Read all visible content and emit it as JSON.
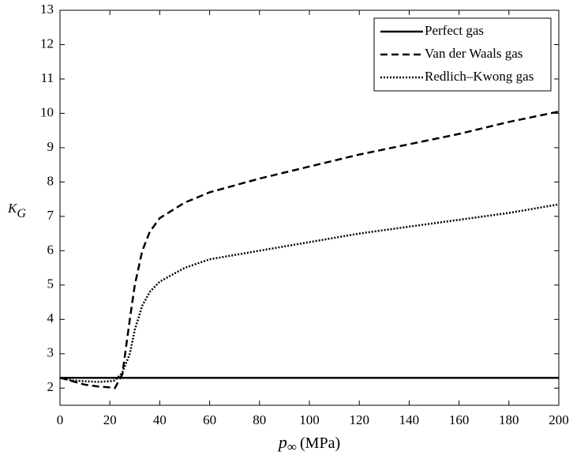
{
  "chart_data": {
    "type": "line",
    "xlabel": {
      "symbol": "p",
      "subscript": "∞",
      "unit": "(MPa)"
    },
    "ylabel": {
      "symbol": "K",
      "subscript": "G"
    },
    "x": [
      0,
      5,
      10,
      15,
      20,
      22,
      25,
      28,
      30,
      33,
      36,
      40,
      50,
      60,
      80,
      100,
      120,
      140,
      160,
      180,
      200
    ],
    "series": [
      {
        "name": "Perfect gas",
        "color": "#000000",
        "dash": "solid",
        "values": [
          2.3,
          2.3,
          2.3,
          2.3,
          2.3,
          2.3,
          2.3,
          2.3,
          2.3,
          2.3,
          2.3,
          2.3,
          2.3,
          2.3,
          2.3,
          2.3,
          2.3,
          2.3,
          2.3,
          2.3,
          2.3
        ]
      },
      {
        "name": "Van der Waals gas",
        "color": "#000000",
        "dash": "dashed",
        "values": [
          2.3,
          2.2,
          2.1,
          2.05,
          2.02,
          2.0,
          2.4,
          4.0,
          5.0,
          6.0,
          6.55,
          6.95,
          7.4,
          7.7,
          8.1,
          8.45,
          8.8,
          9.1,
          9.4,
          9.75,
          10.05
        ]
      },
      {
        "name": "Redlich–Kwong gas",
        "color": "#000000",
        "dash": "dotted",
        "values": [
          2.3,
          2.22,
          2.2,
          2.18,
          2.2,
          2.22,
          2.45,
          3.0,
          3.7,
          4.4,
          4.8,
          5.1,
          5.5,
          5.75,
          6.0,
          6.25,
          6.5,
          6.7,
          6.9,
          7.1,
          7.35
        ]
      }
    ],
    "xlim": [
      0,
      200
    ],
    "xticks": [
      0,
      20,
      40,
      60,
      80,
      100,
      120,
      140,
      160,
      180,
      200
    ],
    "ylim": [
      1.5,
      13
    ],
    "yticks": [
      2,
      3,
      4,
      5,
      6,
      7,
      8,
      9,
      10,
      11,
      12,
      13
    ],
    "grid": false,
    "legend": "upper-right"
  }
}
